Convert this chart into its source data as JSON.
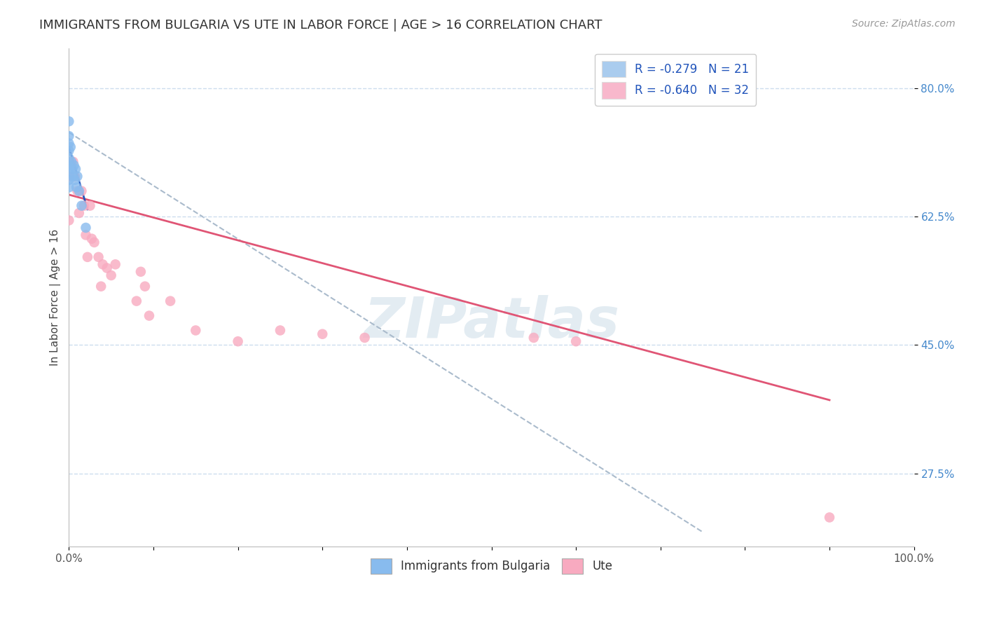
{
  "title": "IMMIGRANTS FROM BULGARIA VS UTE IN LABOR FORCE | AGE > 16 CORRELATION CHART",
  "source": "Source: ZipAtlas.com",
  "ylabel": "In Labor Force | Age > 16",
  "xlim": [
    0.0,
    1.0
  ],
  "ylim": [
    0.175,
    0.855
  ],
  "yticks": [
    0.275,
    0.45,
    0.625,
    0.8
  ],
  "ytick_labels": [
    "27.5%",
    "45.0%",
    "62.5%",
    "80.0%"
  ],
  "xtick_labels": [
    "0.0%",
    "100.0%"
  ],
  "watermark": "ZIPatlas",
  "legend_upper": [
    {
      "label": "R = -0.279   N = 21",
      "color": "#aaccee"
    },
    {
      "label": "R = -0.640   N = 32",
      "color": "#f8b8cc"
    }
  ],
  "bulgaria_scatter_x": [
    0.0,
    0.0,
    0.0,
    0.0,
    0.0,
    0.0,
    0.0,
    0.0,
    0.0,
    0.002,
    0.003,
    0.004,
    0.005,
    0.006,
    0.007,
    0.008,
    0.009,
    0.01,
    0.012,
    0.015,
    0.02
  ],
  "bulgaria_scatter_y": [
    0.755,
    0.735,
    0.725,
    0.715,
    0.705,
    0.695,
    0.685,
    0.675,
    0.665,
    0.72,
    0.7,
    0.69,
    0.68,
    0.695,
    0.675,
    0.69,
    0.665,
    0.68,
    0.66,
    0.64,
    0.61
  ],
  "ute_scatter_x": [
    0.0,
    0.0,
    0.005,
    0.007,
    0.01,
    0.012,
    0.015,
    0.018,
    0.02,
    0.022,
    0.025,
    0.027,
    0.03,
    0.035,
    0.038,
    0.04,
    0.045,
    0.05,
    0.055,
    0.08,
    0.085,
    0.09,
    0.095,
    0.12,
    0.15,
    0.2,
    0.25,
    0.3,
    0.35,
    0.55,
    0.6,
    0.9
  ],
  "ute_scatter_y": [
    0.68,
    0.62,
    0.7,
    0.68,
    0.66,
    0.63,
    0.66,
    0.64,
    0.6,
    0.57,
    0.64,
    0.595,
    0.59,
    0.57,
    0.53,
    0.56,
    0.555,
    0.545,
    0.56,
    0.51,
    0.55,
    0.53,
    0.49,
    0.51,
    0.47,
    0.455,
    0.47,
    0.465,
    0.46,
    0.46,
    0.455,
    0.215
  ],
  "bulgaria_line_x": [
    0.0,
    0.022
  ],
  "bulgaria_line_y": [
    0.72,
    0.635
  ],
  "ute_line_x": [
    0.0,
    0.9
  ],
  "ute_line_y": [
    0.655,
    0.375
  ],
  "dashed_line_x": [
    0.0,
    0.75
  ],
  "dashed_line_y": [
    0.74,
    0.195
  ],
  "scatter_color_bulgaria": "#88bbee",
  "scatter_color_ute": "#f8aac0",
  "line_color_bulgaria": "#2255bb",
  "line_color_ute": "#e05575",
  "dashed_line_color": "#aabbcc",
  "title_fontsize": 13,
  "axis_label_fontsize": 11,
  "tick_fontsize": 11,
  "legend_fontsize": 12,
  "source_fontsize": 10,
  "scatter_size": 110,
  "background_color": "#ffffff",
  "grid_color": "#ccddee",
  "ytick_color": "#4488cc",
  "xtick_color": "#555555"
}
